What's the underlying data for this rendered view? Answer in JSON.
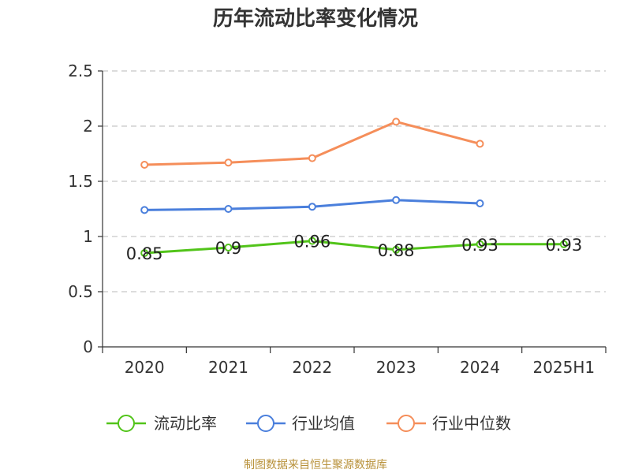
{
  "chart_data": {
    "type": "line",
    "title": "历年流动比率变化情况",
    "categories": [
      "2020",
      "2021",
      "2022",
      "2023",
      "2024",
      "2025H1"
    ],
    "ylim": [
      0,
      2.5
    ],
    "yticks": [
      "0",
      "0.5",
      "1",
      "1.5",
      "2",
      "2.5"
    ],
    "grid": true,
    "legend_position": "bottom",
    "series": [
      {
        "name": "流动比率",
        "color": "#52c41a",
        "values": [
          0.85,
          0.9,
          0.96,
          0.88,
          0.93,
          0.93
        ],
        "labels": [
          "0.85",
          "0.9",
          "0.96",
          "0.88",
          "0.93",
          "0.93"
        ]
      },
      {
        "name": "行业均值",
        "color": "#4a7fdc",
        "values": [
          1.24,
          1.25,
          1.27,
          1.33,
          1.3,
          null
        ]
      },
      {
        "name": "行业中位数",
        "color": "#f58e5a",
        "values": [
          1.65,
          1.67,
          1.71,
          2.04,
          1.84,
          null
        ]
      }
    ]
  },
  "source": "制图数据来自恒生聚源数据库"
}
